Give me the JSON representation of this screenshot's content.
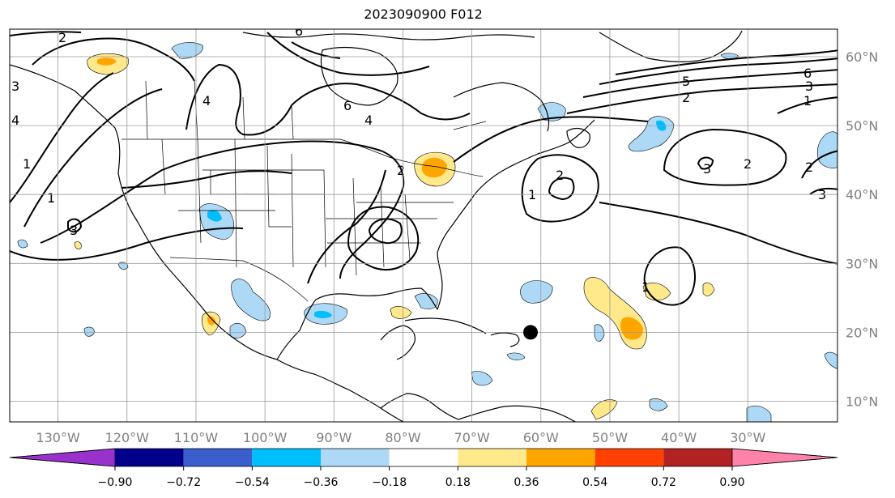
{
  "title": "2023090900 F012",
  "lon_labels": [
    "130°W",
    "120°W",
    "110°W",
    "100°W",
    "90°W",
    "80°W",
    "70°W",
    "60°W",
    "50°W",
    "40°W",
    "30°W"
  ],
  "lat_labels": [
    "60°N",
    "50°N",
    "40°N",
    "30°N",
    "20°N",
    "10°N"
  ],
  "contour_labels": [
    "1",
    "2",
    "3",
    "4",
    "5",
    "6"
  ],
  "colorbar": {
    "ticks": [
      "−0.90",
      "−0.72",
      "−0.54",
      "−0.36",
      "−0.18",
      "0.18",
      "0.36",
      "0.54",
      "0.72",
      "0.90"
    ],
    "colors": [
      "#9932cc",
      "#00008b",
      "#3a5fcd",
      "#00bfff",
      "#add8f6",
      "#ffffff",
      "#ffe98a",
      "#ffa500",
      "#ff4000",
      "#b22222",
      "#ff82ab"
    ]
  },
  "map": {
    "lon_range": [
      -137,
      -17
    ],
    "lat_range": [
      7,
      64
    ],
    "marker": {
      "lon": -61.5,
      "lat": 20.0
    }
  }
}
